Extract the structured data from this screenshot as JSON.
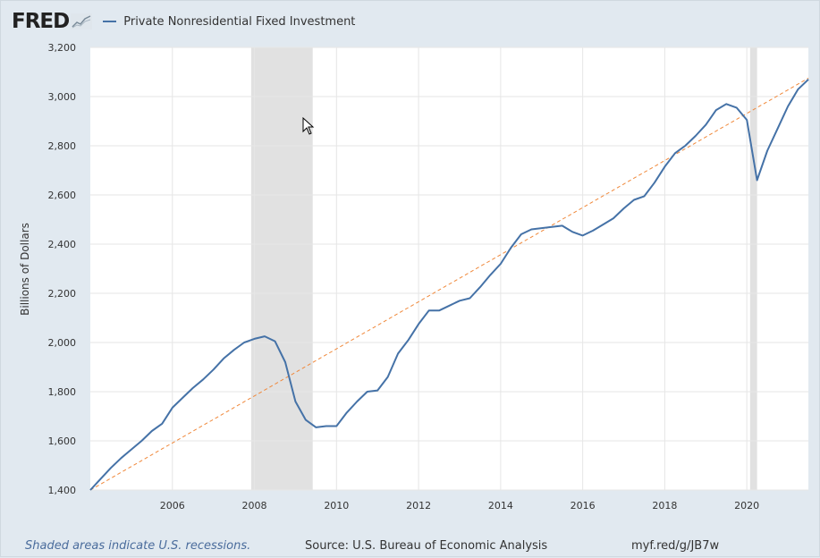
{
  "header": {
    "logo_text": "FRED",
    "logo_icon": "line-chart-icon",
    "series_label": "Private Nonresidential Fixed Investment",
    "series_color": "#4572a7"
  },
  "footer": {
    "recession_note": "Shaded areas indicate U.S. recessions.",
    "source": "Source: U.S. Bureau of Economic Analysis",
    "short_url": "myf.red/g/JB7w"
  },
  "chart_data": {
    "type": "line",
    "title": "Private Nonresidential Fixed Investment",
    "ylabel": "Billions of Dollars",
    "xlabel": "",
    "xlim": [
      2004.0,
      2021.5
    ],
    "ylim": [
      1400,
      3200
    ],
    "x_ticks": [
      2006,
      2008,
      2010,
      2012,
      2014,
      2016,
      2018,
      2020
    ],
    "x_tick_labels": [
      "2006",
      "2008",
      "2010",
      "2012",
      "2014",
      "2016",
      "2018",
      "2020"
    ],
    "y_ticks": [
      1400,
      1600,
      1800,
      2000,
      2200,
      2400,
      2600,
      2800,
      3000,
      3200
    ],
    "y_tick_labels": [
      "1,400",
      "1,600",
      "1,800",
      "2,000",
      "2,200",
      "2,400",
      "2,600",
      "2,800",
      "3,000",
      "3,200"
    ],
    "grid": true,
    "recessions": [
      [
        2007.92,
        2009.42
      ],
      [
        2020.08,
        2020.25
      ]
    ],
    "series": [
      {
        "name": "Private Nonresidential Fixed Investment",
        "color": "#4572a7",
        "x": [
          2004.0,
          2004.25,
          2004.5,
          2004.75,
          2005.0,
          2005.25,
          2005.5,
          2005.75,
          2006.0,
          2006.25,
          2006.5,
          2006.75,
          2007.0,
          2007.25,
          2007.5,
          2007.75,
          2008.0,
          2008.25,
          2008.5,
          2008.75,
          2009.0,
          2009.25,
          2009.5,
          2009.75,
          2010.0,
          2010.25,
          2010.5,
          2010.75,
          2011.0,
          2011.25,
          2011.5,
          2011.75,
          2012.0,
          2012.25,
          2012.5,
          2012.75,
          2013.0,
          2013.25,
          2013.5,
          2013.75,
          2014.0,
          2014.25,
          2014.5,
          2014.75,
          2015.0,
          2015.25,
          2015.5,
          2015.75,
          2016.0,
          2016.25,
          2016.5,
          2016.75,
          2017.0,
          2017.25,
          2017.5,
          2017.75,
          2018.0,
          2018.25,
          2018.5,
          2018.75,
          2019.0,
          2019.25,
          2019.5,
          2019.75,
          2020.0,
          2020.25,
          2020.5,
          2020.75,
          2021.0,
          2021.25,
          2021.5
        ],
        "values": [
          1400,
          1445,
          1490,
          1530,
          1565,
          1600,
          1640,
          1670,
          1735,
          1775,
          1815,
          1850,
          1890,
          1935,
          1970,
          2000,
          2015,
          2025,
          2005,
          1920,
          1760,
          1685,
          1655,
          1660,
          1660,
          1715,
          1760,
          1800,
          1805,
          1860,
          1955,
          2010,
          2075,
          2130,
          2130,
          2150,
          2170,
          2180,
          2225,
          2275,
          2320,
          2385,
          2440,
          2460,
          2465,
          2470,
          2475,
          2450,
          2435,
          2455,
          2480,
          2505,
          2545,
          2580,
          2595,
          2650,
          2715,
          2770,
          2800,
          2840,
          2885,
          2945,
          2970,
          2955,
          2905,
          2660,
          2780,
          2870,
          2960,
          3030,
          3070
        ]
      },
      {
        "name": "Trend",
        "color": "#f0883a",
        "style": "dashed",
        "x": [
          2004.0,
          2021.5
        ],
        "values": [
          1400,
          3075
        ]
      }
    ]
  }
}
